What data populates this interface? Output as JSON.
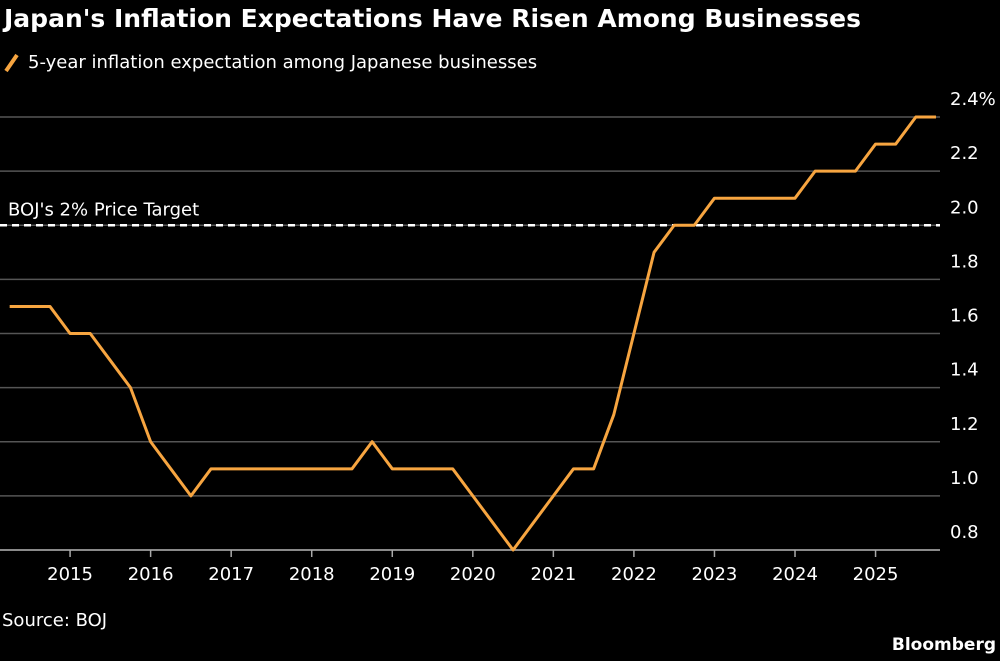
{
  "chart_data": {
    "type": "line",
    "title": "Japan's Inflation Expectations Have Risen Among Businesses",
    "x": [
      2014.25,
      2014.5,
      2014.75,
      2015,
      2015.25,
      2015.5,
      2015.75,
      2016,
      2016.25,
      2016.5,
      2016.75,
      2017,
      2017.25,
      2017.5,
      2017.75,
      2018,
      2018.25,
      2018.5,
      2018.75,
      2019,
      2019.25,
      2019.5,
      2019.75,
      2020,
      2020.25,
      2020.5,
      2020.75,
      2021,
      2021.25,
      2021.5,
      2021.75,
      2022,
      2022.25,
      2022.5,
      2022.75,
      2023,
      2023.25,
      2023.5,
      2023.75,
      2024,
      2024.25,
      2024.5,
      2024.75,
      2025,
      2025.25,
      2025.5,
      2025.75
    ],
    "series": [
      {
        "name": "5-year inflation expectation among Japanese businesses",
        "color": "#f7a540",
        "values": [
          1.7,
          1.7,
          1.7,
          1.6,
          1.6,
          1.5,
          1.4,
          1.2,
          1.1,
          1.0,
          1.1,
          1.1,
          1.1,
          1.1,
          1.1,
          1.1,
          1.1,
          1.1,
          1.2,
          1.1,
          1.1,
          1.1,
          1.1,
          1.0,
          0.9,
          0.8,
          0.9,
          1.0,
          1.1,
          1.1,
          1.3,
          1.6,
          1.9,
          2.0,
          2.0,
          2.1,
          2.1,
          2.1,
          2.1,
          2.1,
          2.2,
          2.2,
          2.2,
          2.3,
          2.3,
          2.4,
          2.4
        ]
      }
    ],
    "xlim": [
      2014.13,
      2025.8
    ],
    "xticks": [
      2015,
      2016,
      2017,
      2018,
      2019,
      2020,
      2021,
      2022,
      2023,
      2024,
      2025
    ],
    "ylim": [
      0.8,
      2.4
    ],
    "yticks": [
      0.8,
      {
        "value": 1,
        "label": "1.0"
      },
      1.2,
      1.4,
      1.6,
      1.8,
      {
        "value": 2,
        "label": "2.0"
      },
      2.2,
      {
        "value": 2.4,
        "label": "2.4%"
      }
    ],
    "grid": true,
    "reference_line": {
      "value": 2,
      "label": "BOJ's 2% Price Target"
    },
    "source": "Source: BOJ",
    "brand": "Bloomberg"
  }
}
